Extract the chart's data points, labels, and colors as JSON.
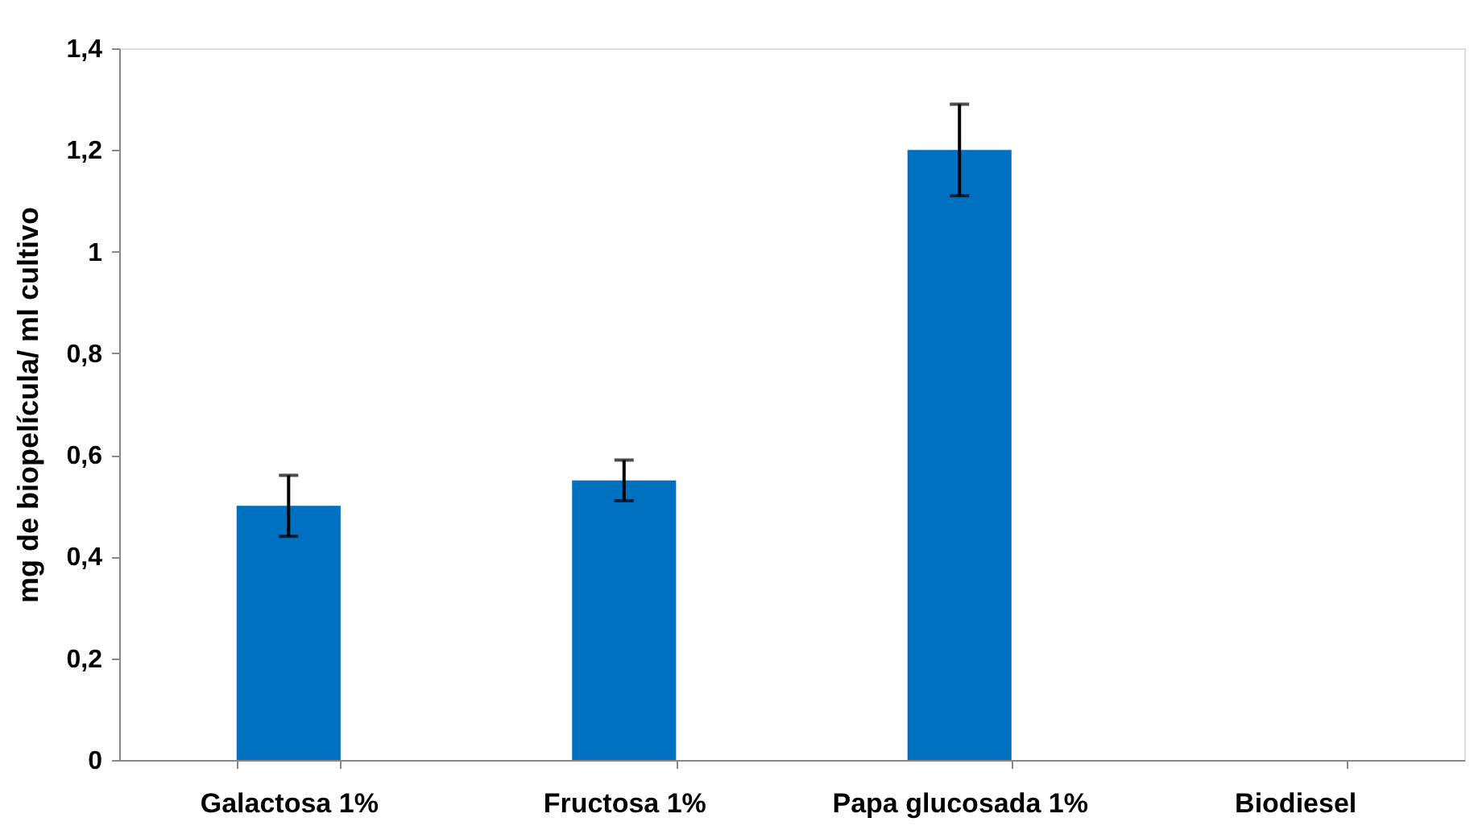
{
  "chart_data": {
    "type": "bar",
    "ylabel": "mg de biopelícula/ ml cultivo",
    "categories": [
      "Galactosa 1%",
      "Fructosa 1%",
      "Papa glucosada 1%",
      "Biodiesel"
    ],
    "values": [
      0.5,
      0.55,
      1.2,
      0
    ],
    "errors": [
      0.06,
      0.04,
      0.09,
      null
    ],
    "color": "#0070c0",
    "ylim": [
      0,
      1.4
    ],
    "yticks": [
      0,
      {
        "value": 0.2,
        "label": "0,2"
      },
      {
        "value": 0.4,
        "label": "0,4"
      },
      {
        "value": 0.6,
        "label": "0,6"
      },
      {
        "value": 0.8,
        "label": "0,8"
      },
      1,
      {
        "value": 1.2,
        "label": "1,2"
      },
      {
        "value": 1.4,
        "label": "1,4"
      }
    ],
    "grid": false
  }
}
